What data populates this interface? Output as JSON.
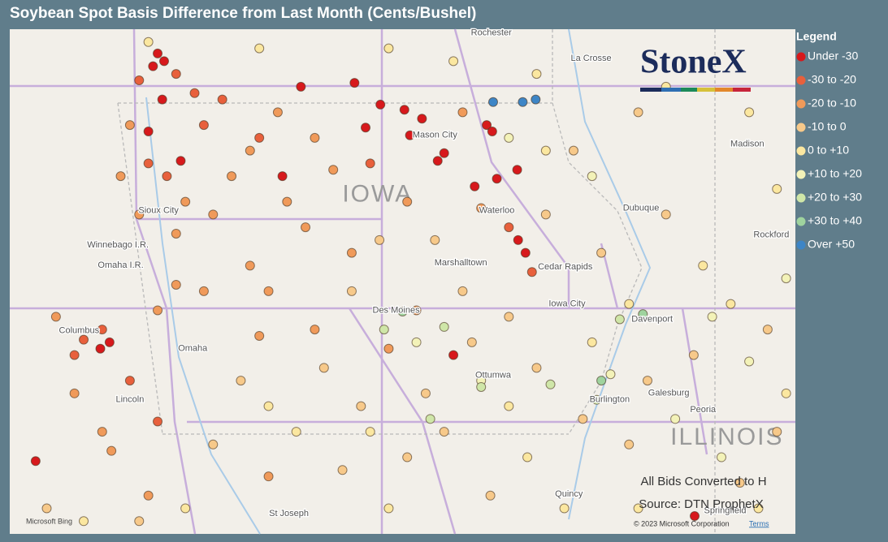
{
  "title": "Soybean Spot Basis Difference from Last Month (Cents/Bushel)",
  "legend": {
    "title": "Legend",
    "bins": [
      {
        "label": "Under -30",
        "color": "#d7191c"
      },
      {
        "label": "-30 to -20",
        "color": "#e8603c"
      },
      {
        "label": "-20 to -10",
        "color": "#f09a5a"
      },
      {
        "label": "-10 to 0",
        "color": "#f7c98a"
      },
      {
        "label": "0 to +10",
        "color": "#fbe7a0"
      },
      {
        "label": "+10 to +20",
        "color": "#f3f2b8"
      },
      {
        "label": "+20 to +30",
        "color": "#cfe6a8"
      },
      {
        "label": "+30 to +40",
        "color": "#9fd39e"
      },
      {
        "label": "Over +50",
        "color": "#3d85c6"
      }
    ]
  },
  "logo": "StoneX",
  "notes": [
    "All Bids Converted to H",
    "Source: DTN ProphetX"
  ],
  "footer": {
    "bing": "Microsoft Bing",
    "copyright": "© 2023 Microsoft Corporation",
    "terms": "Terms"
  },
  "map": {
    "states": [
      {
        "name": "IOWA",
        "lon": -93.62,
        "lat": 42.75
      },
      {
        "name": "ILLINOIS",
        "lon": -89.84,
        "lat": 40.85
      }
    ],
    "cities": [
      {
        "name": "Rochester",
        "lon": -92.39,
        "lat": 44.02
      },
      {
        "name": "La Crosse",
        "lon": -91.31,
        "lat": 43.82
      },
      {
        "name": "Sioux City",
        "lon": -95.99,
        "lat": 42.63
      },
      {
        "name": "Mason City",
        "lon": -93.0,
        "lat": 43.22
      },
      {
        "name": "Waterloo",
        "lon": -92.33,
        "lat": 42.63
      },
      {
        "name": "Dubuque",
        "lon": -90.77,
        "lat": 42.65
      },
      {
        "name": "Madison",
        "lon": -89.62,
        "lat": 43.15
      },
      {
        "name": "Rockford",
        "lon": -89.36,
        "lat": 42.44
      },
      {
        "name": "Cedar Rapids",
        "lon": -91.59,
        "lat": 42.19
      },
      {
        "name": "Marshalltown",
        "lon": -92.72,
        "lat": 42.22
      },
      {
        "name": "Iowa City",
        "lon": -91.57,
        "lat": 41.9
      },
      {
        "name": "Davenport",
        "lon": -90.65,
        "lat": 41.78
      },
      {
        "name": "Des Moines",
        "lon": -93.42,
        "lat": 41.85
      },
      {
        "name": "Omaha",
        "lon": -95.62,
        "lat": 41.55
      },
      {
        "name": "Columbus",
        "lon": -96.85,
        "lat": 41.69
      },
      {
        "name": "Ottumwa",
        "lon": -92.37,
        "lat": 41.34
      },
      {
        "name": "Burlington",
        "lon": -91.11,
        "lat": 41.15
      },
      {
        "name": "Galesburg",
        "lon": -90.47,
        "lat": 41.2
      },
      {
        "name": "Peoria",
        "lon": -90.1,
        "lat": 41.07
      },
      {
        "name": "St Joseph",
        "lon": -94.58,
        "lat": 40.26
      },
      {
        "name": "Quincy",
        "lon": -91.55,
        "lat": 40.41
      },
      {
        "name": "Springfield",
        "lon": -89.86,
        "lat": 40.28
      },
      {
        "name": "Lincoln",
        "lon": -96.3,
        "lat": 41.15
      },
      {
        "name": "Winnebago I.R.",
        "lon": -96.43,
        "lat": 42.36
      },
      {
        "name": "Omaha I.R.",
        "lon": -96.4,
        "lat": 42.2
      }
    ],
    "points": [
      [
        -96.0,
        43.86,
        0
      ],
      [
        -95.93,
        43.8,
        0
      ],
      [
        -96.05,
        43.76,
        0
      ],
      [
        -95.95,
        43.5,
        0
      ],
      [
        -96.1,
        43.25,
        0
      ],
      [
        -95.75,
        43.02,
        0
      ],
      [
        -93.87,
        43.63,
        0
      ],
      [
        -93.33,
        43.42,
        0
      ],
      [
        -93.14,
        43.35,
        0
      ],
      [
        -93.75,
        43.28,
        0
      ],
      [
        -93.27,
        43.22,
        0
      ],
      [
        -92.97,
        43.02,
        0
      ],
      [
        -92.9,
        43.08,
        0
      ],
      [
        -92.44,
        43.3,
        0
      ],
      [
        -92.38,
        43.25,
        0
      ],
      [
        -92.11,
        42.95,
        0
      ],
      [
        -92.33,
        42.88,
        0
      ],
      [
        -92.57,
        42.82,
        0
      ],
      [
        -92.1,
        42.4,
        0
      ],
      [
        -92.02,
        42.3,
        0
      ],
      [
        -92.8,
        41.5,
        0
      ],
      [
        -97.32,
        40.67,
        0
      ],
      [
        -90.19,
        40.24,
        0
      ],
      [
        -96.62,
        41.55,
        0
      ],
      [
        -96.52,
        41.6,
        0
      ],
      [
        -94.65,
        42.9,
        0
      ],
      [
        -94.45,
        43.6,
        0
      ],
      [
        -93.59,
        43.46,
        0
      ],
      [
        -96.2,
        43.65,
        1
      ],
      [
        -95.8,
        43.7,
        1
      ],
      [
        -95.6,
        43.55,
        1
      ],
      [
        -96.1,
        43.0,
        1
      ],
      [
        -95.9,
        42.9,
        1
      ],
      [
        -95.5,
        43.3,
        1
      ],
      [
        -94.9,
        43.2,
        1
      ],
      [
        -96.6,
        41.7,
        1
      ],
      [
        -96.8,
        41.62,
        1
      ],
      [
        -96.9,
        41.5,
        1
      ],
      [
        -96.3,
        41.3,
        1
      ],
      [
        -96.0,
        40.98,
        1
      ],
      [
        -95.3,
        43.5,
        1
      ],
      [
        -92.2,
        42.5,
        1
      ],
      [
        -91.95,
        42.15,
        1
      ],
      [
        -93.7,
        43.0,
        1
      ],
      [
        -96.3,
        43.3,
        2
      ],
      [
        -96.4,
        42.9,
        2
      ],
      [
        -95.7,
        42.7,
        2
      ],
      [
        -95.4,
        42.6,
        2
      ],
      [
        -95.2,
        42.9,
        2
      ],
      [
        -95.0,
        43.1,
        2
      ],
      [
        -94.7,
        43.4,
        2
      ],
      [
        -94.3,
        43.2,
        2
      ],
      [
        -94.1,
        42.95,
        2
      ],
      [
        -94.6,
        42.7,
        2
      ],
      [
        -95.8,
        42.45,
        2
      ],
      [
        -96.2,
        42.6,
        2
      ],
      [
        -95.0,
        42.2,
        2
      ],
      [
        -94.4,
        42.5,
        2
      ],
      [
        -93.9,
        42.3,
        2
      ],
      [
        -96.6,
        40.9,
        2
      ],
      [
        -96.9,
        41.2,
        2
      ],
      [
        -96.5,
        40.75,
        2
      ],
      [
        -97.1,
        41.8,
        2
      ],
      [
        -96.0,
        41.85,
        2
      ],
      [
        -95.8,
        42.05,
        2
      ],
      [
        -93.2,
        41.85,
        2
      ],
      [
        -94.8,
        42.0,
        2
      ],
      [
        -92.5,
        42.65,
        2
      ],
      [
        -92.7,
        43.4,
        2
      ],
      [
        -93.3,
        42.7,
        2
      ],
      [
        -95.5,
        42.0,
        2
      ],
      [
        -94.9,
        41.65,
        2
      ],
      [
        -94.3,
        41.7,
        2
      ],
      [
        -93.5,
        41.55,
        2
      ],
      [
        -96.1,
        40.4,
        2
      ],
      [
        -94.8,
        40.55,
        2
      ],
      [
        -93.9,
        42.0,
        3
      ],
      [
        -93.6,
        42.4,
        3
      ],
      [
        -93.0,
        42.4,
        3
      ],
      [
        -92.7,
        42.0,
        3
      ],
      [
        -94.2,
        41.4,
        3
      ],
      [
        -93.8,
        41.1,
        3
      ],
      [
        -93.1,
        41.2,
        3
      ],
      [
        -92.2,
        41.8,
        3
      ],
      [
        -91.8,
        42.6,
        3
      ],
      [
        -91.5,
        43.1,
        3
      ],
      [
        -90.8,
        43.4,
        3
      ],
      [
        -95.4,
        40.8,
        3
      ],
      [
        -94.0,
        40.6,
        3
      ],
      [
        -93.3,
        40.7,
        3
      ],
      [
        -92.9,
        40.9,
        3
      ],
      [
        -92.4,
        40.4,
        3
      ],
      [
        -91.9,
        41.4,
        3
      ],
      [
        -91.4,
        41.0,
        3
      ],
      [
        -90.7,
        41.3,
        3
      ],
      [
        -90.2,
        41.5,
        3
      ],
      [
        -89.4,
        41.7,
        3
      ],
      [
        -89.3,
        40.9,
        3
      ],
      [
        -89.7,
        40.5,
        3
      ],
      [
        -90.9,
        40.8,
        3
      ],
      [
        -91.2,
        42.3,
        3
      ],
      [
        -90.5,
        42.6,
        3
      ],
      [
        -96.2,
        40.2,
        3
      ],
      [
        -97.2,
        40.3,
        3
      ],
      [
        -95.1,
        41.3,
        3
      ],
      [
        -92.6,
        41.6,
        3
      ],
      [
        -96.8,
        40.2,
        4
      ],
      [
        -95.7,
        40.3,
        4
      ],
      [
        -94.5,
        40.9,
        4
      ],
      [
        -93.5,
        40.3,
        4
      ],
      [
        -92.0,
        40.7,
        4
      ],
      [
        -91.6,
        40.3,
        4
      ],
      [
        -90.8,
        40.3,
        4
      ],
      [
        -89.5,
        40.3,
        4
      ],
      [
        -89.2,
        41.2,
        4
      ],
      [
        -89.8,
        41.9,
        4
      ],
      [
        -90.1,
        42.2,
        4
      ],
      [
        -90.9,
        41.9,
        4
      ],
      [
        -91.3,
        41.6,
        4
      ],
      [
        -92.2,
        41.1,
        4
      ],
      [
        -93.7,
        40.9,
        4
      ],
      [
        -94.8,
        41.1,
        4
      ],
      [
        -96.1,
        43.95,
        4
      ],
      [
        -94.9,
        43.9,
        4
      ],
      [
        -93.5,
        43.9,
        4
      ],
      [
        -92.8,
        43.8,
        4
      ],
      [
        -91.9,
        43.7,
        4
      ],
      [
        -90.5,
        43.6,
        4
      ],
      [
        -89.6,
        43.4,
        4
      ],
      [
        -89.3,
        42.8,
        4
      ],
      [
        -91.8,
        43.1,
        4
      ],
      [
        -90.0,
        41.8,
        5
      ],
      [
        -89.6,
        41.45,
        5
      ],
      [
        -90.4,
        41.0,
        5
      ],
      [
        -89.9,
        40.7,
        5
      ],
      [
        -92.2,
        43.2,
        5
      ],
      [
        -91.3,
        42.9,
        5
      ],
      [
        -93.2,
        41.6,
        5
      ],
      [
        -92.5,
        41.3,
        5
      ],
      [
        -91.1,
        41.35,
        5
      ],
      [
        -89.2,
        42.1,
        5
      ],
      [
        -93.55,
        41.7,
        6
      ],
      [
        -92.5,
        41.25,
        6
      ],
      [
        -91.75,
        41.27,
        6
      ],
      [
        -91.25,
        41.15,
        6
      ],
      [
        -93.05,
        41.0,
        6
      ],
      [
        -92.9,
        41.72,
        6
      ],
      [
        -91.0,
        41.78,
        6
      ],
      [
        -93.35,
        41.84,
        7
      ],
      [
        -91.2,
        41.3,
        7
      ],
      [
        -90.75,
        41.82,
        7
      ],
      [
        -92.37,
        43.48,
        8
      ],
      [
        -92.05,
        43.48,
        8
      ],
      [
        -91.91,
        43.5,
        8
      ]
    ]
  }
}
